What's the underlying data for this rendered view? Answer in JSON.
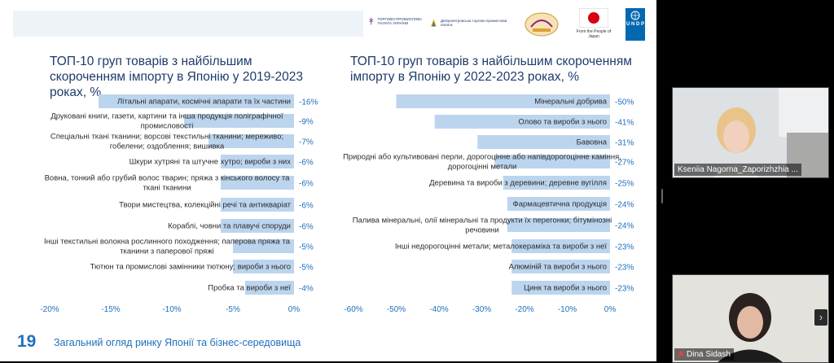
{
  "header": {
    "logo1_text": "ТОРГОВО-ПРОМИСЛОВА ПАЛАТА УКРАЇНИ",
    "logo2_text": "Дніпропетровська торгово-промислова палата",
    "japan_text": "From the People of Japan",
    "undp_text": "U N D P"
  },
  "chart_data": [
    {
      "type": "bar",
      "title": "ТОП-10 груп товарів з найбільшим скороченням імпорту в Японію у 2019-2023 роках, %",
      "categories": [
        "Літальні апарати, космічні апарати та їх частини",
        "Друковані книги, газети, картини та інша продукція поліграфічної промисловості",
        "Спеціальні ткані тканини; ворсові текстильні тканини; мереживо; гобелени; оздоблення; вишивка",
        "Шкури  хутряні та штучне хутро; вироби з них",
        "Вовна, тонкий або грубий волос тварин; пряжа з кінського волосу та ткані тканини",
        "Твори мистецтва, колекційні речі та антикваріат",
        "Кораблі, човни та плавучі споруди",
        "Інші  текстильні волокна рослинного походження; паперова пряжа та тканини з паперової пряжі",
        "Тютюн та промислові замінники тютюну; вироби з нього",
        "Пробка та вироби з неї"
      ],
      "values": [
        -16,
        -9,
        -7,
        -6,
        -6,
        -6,
        -6,
        -5,
        -5,
        -4
      ],
      "value_labels": [
        "-16%",
        "-9%",
        "-7%",
        "-6%",
        "-6%",
        "-6%",
        "-6%",
        "-5%",
        "-5%",
        "-4%"
      ],
      "xlim": [
        -20,
        0
      ],
      "xticks": [
        "-20%",
        "-15%",
        "-10%",
        "-5%",
        "0%"
      ],
      "bar_color": "#bcd5ee"
    },
    {
      "type": "bar",
      "title": "ТОП-10 груп товарів з найбільшим скороченням імпорту в Японію у 2022-2023 роках, %",
      "categories": [
        "Мінеральні добрива",
        "Олово та вироби з нього",
        "Бавовна",
        "Природні або культивовані перли, дорогоцінне або напівдорогоцінне каміння, дорогоцінні метали",
        "Деревина та вироби з деревини; деревне вугілля",
        "Фармацевтична продукція",
        "Палива мінеральні, олії мінеральні та продукти їх перегонки; бітумінозні речовини",
        "Інші  недорогоцінні метали; металокераміка та вироби з неї",
        "Алюміній та вироби з нього",
        "Цинк та вироби з нього"
      ],
      "values": [
        -50,
        -41,
        -31,
        -27,
        -25,
        -24,
        -24,
        -23,
        -23,
        -23
      ],
      "value_labels": [
        "-50%",
        "-41%",
        "-31%",
        "-27%",
        "-25%",
        "-24%",
        "-24%",
        "-23%",
        "-23%",
        "-23%"
      ],
      "xlim": [
        -60,
        0
      ],
      "xticks": [
        "-60%",
        "-50%",
        "-40%",
        "-30%",
        "-20%",
        "-10%",
        "0%"
      ],
      "bar_color": "#bcd5ee"
    }
  ],
  "footer": {
    "slide_number": "19",
    "text": "Загальний огляд ринку Японії та бізнес-середовища"
  },
  "participants": [
    {
      "name": "Kseniia Nagorna_Zaporizhzhia ..."
    },
    {
      "name": "Dina Sidash"
    }
  ],
  "colors": {
    "title": "#1f3b6b",
    "accent": "#1f6fbd",
    "bar": "#bcd5ee",
    "undp": "#0468b1",
    "japan_red": "#d7000f"
  }
}
